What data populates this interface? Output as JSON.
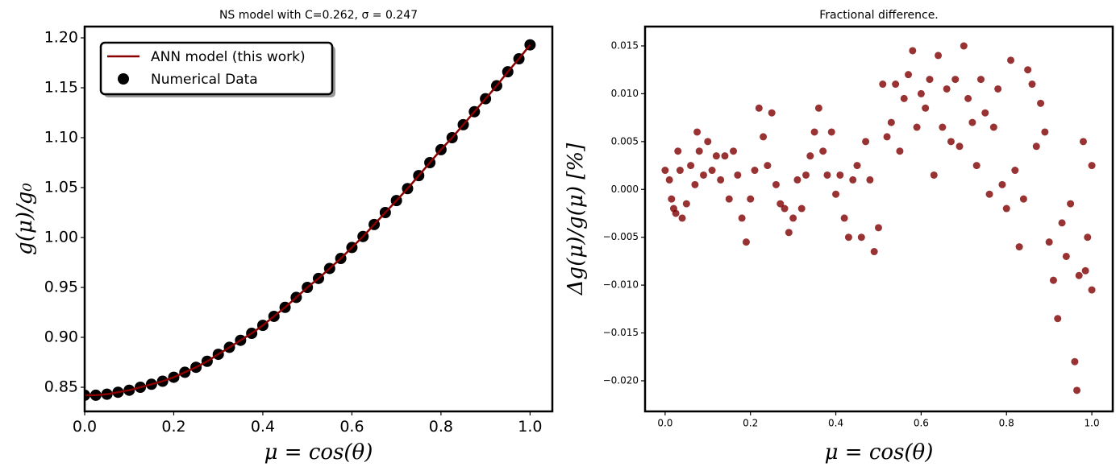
{
  "chart_data": [
    {
      "type": "line-scatter",
      "title": "NS model with C=0.262, σ = 0.247",
      "x_label": "μ = cos(θ)",
      "y_label": "g(μ)/g₀",
      "x": [
        0,
        0.025,
        0.05,
        0.075,
        0.1,
        0.125,
        0.15,
        0.175,
        0.2,
        0.225,
        0.25,
        0.275,
        0.3,
        0.325,
        0.35,
        0.375,
        0.4,
        0.425,
        0.45,
        0.475,
        0.5,
        0.525,
        0.55,
        0.575,
        0.6,
        0.625,
        0.65,
        0.675,
        0.7,
        0.725,
        0.75,
        0.775,
        0.8,
        0.825,
        0.85,
        0.875,
        0.9,
        0.925,
        0.95,
        0.975,
        1.0
      ],
      "series": [
        {
          "name": "ANN model (this work)",
          "color": "#8b0000",
          "values": [
            0.842,
            0.842,
            0.843,
            0.845,
            0.847,
            0.85,
            0.853,
            0.856,
            0.86,
            0.865,
            0.87,
            0.876,
            0.883,
            0.89,
            0.897,
            0.904,
            0.912,
            0.921,
            0.93,
            0.94,
            0.95,
            0.959,
            0.969,
            0.979,
            0.99,
            1.001,
            1.013,
            1.025,
            1.037,
            1.049,
            1.062,
            1.075,
            1.088,
            1.1,
            1.113,
            1.126,
            1.139,
            1.152,
            1.166,
            1.179,
            1.193
          ]
        },
        {
          "name": "Numerical Data",
          "color": "#000000",
          "values": [
            0.842,
            0.842,
            0.843,
            0.845,
            0.847,
            0.85,
            0.853,
            0.856,
            0.86,
            0.865,
            0.87,
            0.876,
            0.883,
            0.89,
            0.897,
            0.904,
            0.912,
            0.921,
            0.93,
            0.94,
            0.95,
            0.959,
            0.969,
            0.979,
            0.99,
            1.001,
            1.013,
            1.025,
            1.037,
            1.049,
            1.062,
            1.075,
            1.088,
            1.1,
            1.113,
            1.126,
            1.139,
            1.152,
            1.166,
            1.179,
            1.193
          ]
        }
      ],
      "xlim": [
        0,
        1.05
      ],
      "ylim": [
        0.8258,
        1.2113
      ],
      "xticks": [
        {
          "value": 0,
          "label": "0.0"
        },
        0.2,
        0.4,
        0.6,
        0.8,
        {
          "value": 1,
          "label": "1.0"
        }
      ],
      "yticks": [
        0.85,
        {
          "value": 0.9,
          "label": "0.90"
        },
        0.95,
        {
          "value": 1.0,
          "label": "1.00"
        },
        1.05,
        {
          "value": 1.1,
          "label": "1.10"
        },
        1.15,
        {
          "value": 1.2,
          "label": "1.20"
        }
      ],
      "legend": "upper left"
    },
    {
      "type": "scatter",
      "title": "Fractional difference.",
      "x_label": "μ = cos(θ)",
      "y_label": "Δg(μ)/g(μ)  [%]",
      "series": [
        {
          "color": "#800000",
          "x": [
            0,
            0.01,
            0.015,
            0.02,
            0.025,
            0.03,
            0.035,
            0.04,
            0.05,
            0.06,
            0.07,
            0.075,
            0.08,
            0.09,
            0.1,
            0.11,
            0.12,
            0.13,
            0.14,
            0.15,
            0.16,
            0.17,
            0.18,
            0.19,
            0.2,
            0.21,
            0.22,
            0.23,
            0.24,
            0.25,
            0.26,
            0.27,
            0.28,
            0.29,
            0.3,
            0.31,
            0.32,
            0.33,
            0.34,
            0.35,
            0.36,
            0.37,
            0.38,
            0.39,
            0.4,
            0.41,
            0.42,
            0.43,
            0.44,
            0.45,
            0.46,
            0.47,
            0.48,
            0.49,
            0.5,
            0.51,
            0.52,
            0.53,
            0.54,
            0.55,
            0.56,
            0.57,
            0.58,
            0.59,
            0.6,
            0.61,
            0.62,
            0.63,
            0.64,
            0.65,
            0.66,
            0.67,
            0.68,
            0.69,
            0.7,
            0.71,
            0.72,
            0.73,
            0.74,
            0.75,
            0.76,
            0.77,
            0.78,
            0.79,
            0.8,
            0.81,
            0.82,
            0.83,
            0.84,
            0.85,
            0.86,
            0.87,
            0.88,
            0.89,
            0.9,
            0.91,
            0.92,
            0.93,
            0.94,
            0.95,
            0.96,
            0.965,
            0.97,
            0.98,
            0.985,
            0.99,
            1.0,
            1.0
          ],
          "values": [
            0.002,
            0.001,
            -0.001,
            -0.002,
            -0.0025,
            0.004,
            0.002,
            -0.003,
            -0.0015,
            0.0025,
            0.0005,
            0.006,
            0.004,
            0.0015,
            0.005,
            0.002,
            0.0035,
            0.001,
            0.0035,
            -0.001,
            0.004,
            0.0015,
            -0.003,
            -0.0055,
            -0.001,
            0.002,
            0.0085,
            0.0055,
            0.0025,
            0.008,
            0.0005,
            -0.0015,
            -0.002,
            -0.0045,
            -0.003,
            0.001,
            -0.002,
            0.0015,
            0.0035,
            0.006,
            0.0085,
            0.004,
            0.0015,
            0.006,
            -0.0005,
            0.0015,
            -0.003,
            -0.005,
            0.001,
            0.0025,
            -0.005,
            0.005,
            0.001,
            -0.0065,
            -0.004,
            0.011,
            0.0055,
            0.007,
            0.011,
            0.004,
            0.0095,
            0.012,
            0.0145,
            0.0065,
            0.01,
            0.0085,
            0.0115,
            0.0015,
            0.014,
            0.0065,
            0.0105,
            0.005,
            0.0115,
            0.0045,
            0.015,
            0.0095,
            0.007,
            0.0025,
            0.0115,
            0.008,
            -0.0005,
            0.0065,
            0.0105,
            0.0005,
            -0.002,
            0.0135,
            0.002,
            -0.006,
            -0.001,
            0.0125,
            0.011,
            0.0045,
            0.009,
            0.006,
            -0.0055,
            -0.0095,
            -0.0135,
            -0.0035,
            -0.007,
            -0.0015,
            -0.018,
            -0.021,
            -0.009,
            0.005,
            -0.0085,
            -0.005,
            0.0025,
            -0.0105
          ]
        }
      ],
      "xlim": [
        -0.047,
        1.049
      ],
      "ylim": [
        -0.0232,
        0.01702
      ],
      "xticks": [
        {
          "value": 0,
          "label": "0.0"
        },
        0.2,
        0.4,
        0.6,
        0.8,
        {
          "value": 1,
          "label": "1.0"
        }
      ],
      "yticks": [
        {
          "value": -0.02,
          "label": "−0.020"
        },
        {
          "value": -0.015,
          "label": "−0.015"
        },
        {
          "value": -0.01,
          "label": "−0.010"
        },
        {
          "value": -0.005,
          "label": "−0.005"
        },
        {
          "value": 0,
          "label": "0.000"
        },
        0.005,
        {
          "value": 0.01,
          "label": "0.010"
        },
        0.015
      ]
    }
  ]
}
